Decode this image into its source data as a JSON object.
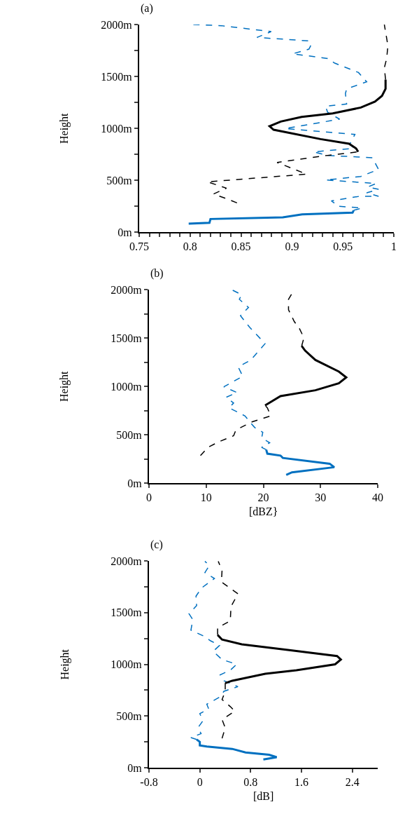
{
  "chart_data": [
    {
      "type": "line",
      "title": "(a)",
      "ylabel": "Height",
      "marker": "none",
      "xlim": [
        0.75,
        1
      ],
      "ylim": [
        0,
        2000
      ],
      "xticks": [
        0.75,
        {
          "value": 0.76,
          "label": null
        },
        {
          "value": 0.77,
          "label": null
        },
        {
          "value": 0.78,
          "label": null
        },
        {
          "value": 0.79,
          "label": null
        },
        0.8,
        {
          "value": 0.81,
          "label": null
        },
        {
          "value": 0.82,
          "label": null
        },
        {
          "value": 0.83,
          "label": null
        },
        {
          "value": 0.84,
          "label": null
        },
        0.85,
        {
          "value": 0.86,
          "label": null
        },
        {
          "value": 0.87,
          "label": null
        },
        {
          "value": 0.88,
          "label": null
        },
        {
          "value": 0.89,
          "label": null
        },
        0.9,
        {
          "value": 0.91,
          "label": null
        },
        {
          "value": 0.92,
          "label": null
        },
        {
          "value": 0.93,
          "label": null
        },
        {
          "value": 0.94,
          "label": null
        },
        0.95,
        {
          "value": 0.96,
          "label": null
        },
        {
          "value": 0.97,
          "label": null
        },
        {
          "value": 0.98,
          "label": null
        },
        {
          "value": 0.99,
          "label": null
        },
        1
      ],
      "yticks": [
        {
          "value": 0,
          "label": "0m"
        },
        {
          "value": 250,
          "label": null
        },
        {
          "value": 500,
          "label": "500m"
        },
        {
          "value": 750,
          "label": null
        },
        {
          "value": 1000,
          "label": "1000m"
        },
        {
          "value": 1250,
          "label": null
        },
        {
          "value": 1500,
          "label": "1500m"
        },
        {
          "value": 1750,
          "label": null
        },
        {
          "value": 2000,
          "label": "2000m"
        }
      ],
      "series": [
        {
          "color": "#0070c0",
          "line_style": "solid",
          "x": [
            0.7986,
            0.819,
            0.82,
            0.891,
            0.91,
            0.9595,
            0.9606
          ],
          "values": [
            81,
            90,
            126,
            142,
            171,
            187,
            209
          ]
        },
        {
          "color": "#0070c0",
          "line_style": "dashed",
          "x": [
            0.9606,
            0.9688,
            0.9444,
            0.942,
            0.9387,
            0.9664,
            0.985,
            0.9734,
            0.985,
            0.9745,
            0.9826,
            0.933,
            0.9676,
            0.985,
            0.979,
            0.935,
            0.9213,
            0.9606,
            0.957,
            0.9618,
            0.8935,
            0.9468,
            0.935,
            0.9329,
            0.9537,
            0.9525,
            0.9537,
            0.9734,
            0.9653,
            0.942,
            0.935,
            0.9005,
            0.9167,
            0.919,
            0.9167,
            0.8657,
            0.8796,
            0.831,
            0.8032
          ],
          "values": [
            209,
            232,
            250,
            277,
            300,
            345,
            345,
            378,
            412,
            435,
            468,
            502,
            536,
            604,
            716,
            739,
            773,
            806,
            851,
            941,
            998,
            1088,
            1155,
            1212,
            1234,
            1335,
            1380,
            1448,
            1538,
            1628,
            1673,
            1718,
            1763,
            1808,
            1842,
            1876,
            1932,
            1989,
            2000
          ]
        },
        {
          "color": "#000000",
          "line_style": "dashed",
          "x": [
            0.846,
            0.8357,
            0.823,
            0.8357,
            0.817,
            0.9144,
            0.8854,
            0.935,
            0.965
          ],
          "values": [
            281,
            322,
            367,
            423,
            484,
            558,
            671,
            739,
            773
          ]
        },
        {
          "color": "#000000",
          "line_style": "solid",
          "x": [
            0.965,
            0.963,
            0.956,
            0.928,
            0.882,
            0.878,
            0.889,
            0.9095,
            0.94,
            0.9676,
            0.9815,
            0.9884,
            0.9919,
            0.9919
          ],
          "values": [
            773,
            806,
            851,
            896,
            986,
            1020,
            1065,
            1110,
            1144,
            1200,
            1257,
            1313,
            1380,
            1470
          ]
        },
        {
          "color": "#000000",
          "line_style": "dashed",
          "x": [
            0.9919,
            0.9907,
            0.993,
            0.9942,
            0.9907
          ],
          "values": [
            1470,
            1583,
            1673,
            1797,
            2000
          ]
        }
      ]
    },
    {
      "type": "line",
      "title": "(b)",
      "xlabel": "[dBZ}",
      "ylabel": "Height",
      "marker": "none",
      "xlim": [
        0,
        40
      ],
      "ylim": [
        0,
        2000
      ],
      "xticks": [
        0,
        10,
        20,
        30,
        40
      ],
      "yticks": [
        {
          "value": 0,
          "label": "0m"
        },
        {
          "value": 250,
          "label": null
        },
        {
          "value": 500,
          "label": "500m"
        },
        {
          "value": 750,
          "label": null
        },
        {
          "value": 1000,
          "label": "1000m"
        },
        {
          "value": 1250,
          "label": null
        },
        {
          "value": 1500,
          "label": "1500m"
        },
        {
          "value": 1750,
          "label": null
        },
        {
          "value": 2000,
          "label": "2000m"
        }
      ],
      "series": [
        {
          "color": "#0070c0",
          "line_style": "solid",
          "x": [
            24.0,
            25.0,
            32.4,
            31.6,
            23.4,
            23.0,
            20.7,
            20.5
          ],
          "values": [
            84,
            111,
            164,
            200,
            260,
            284,
            304,
            345
          ]
        },
        {
          "color": "#0070c0",
          "line_style": "dashed",
          "x": [
            20.5,
            19.7,
            21.1,
            19.7,
            19.9,
            18.5,
            17.6,
            16.8,
            14.0,
            14.8,
            13.5,
            15.4,
            13.1,
            16.4,
            15.6,
            17.8,
            20.3,
            17.6,
            16.0,
            17.4,
            15.8,
            16.2,
            14.4
          ],
          "values": [
            345,
            369,
            417,
            465,
            525,
            574,
            634,
            694,
            778,
            827,
            887,
            935,
            995,
            1104,
            1200,
            1272,
            1441,
            1610,
            1730,
            1815,
            1899,
            1947,
            2000
          ]
        },
        {
          "color": "#000000",
          "line_style": "dashed",
          "x": [
            9.0,
            10.3,
            12.3,
            14.8,
            15.2,
            18.1,
            21.3,
            20.7,
            20.3
          ],
          "values": [
            284,
            369,
            429,
            489,
            549,
            634,
            694,
            778,
            803
          ]
        },
        {
          "color": "#000000",
          "line_style": "solid",
          "x": [
            20.3,
            23.0,
            29.1,
            33.2,
            34.5,
            33.2,
            29.1,
            27.3,
            26.7
          ],
          "values": [
            803,
            899,
            959,
            1031,
            1092,
            1152,
            1272,
            1369,
            1417
          ]
        },
        {
          "color": "#000000",
          "line_style": "dashed",
          "x": [
            26.7,
            27.1,
            26.3,
            25.4,
            24.4,
            24.4,
            25.0,
            24.6
          ],
          "values": [
            1417,
            1501,
            1598,
            1670,
            1791,
            1899,
            1959,
            2000
          ]
        }
      ]
    },
    {
      "type": "line",
      "title": "(c)",
      "xlabel": "[dB]",
      "ylabel": "Height",
      "marker": "none",
      "xlim": [
        -0.8,
        2.8
      ],
      "ylim": [
        0,
        2000
      ],
      "xticks": [
        -0.8,
        0,
        0.8,
        1.6,
        2.4
      ],
      "yticks": [
        {
          "value": 0,
          "label": "0m"
        },
        {
          "value": 250,
          "label": null
        },
        {
          "value": 500,
          "label": "500m"
        },
        {
          "value": 750,
          "label": null
        },
        {
          "value": 1000,
          "label": "1000m"
        },
        {
          "value": 1250,
          "label": null
        },
        {
          "value": 1500,
          "label": "1500m"
        },
        {
          "value": 1750,
          "label": null
        },
        {
          "value": 2000,
          "label": "2000m"
        }
      ],
      "series": [
        {
          "color": "#0070c0",
          "line_style": "solid",
          "x": [
            1.0,
            1.21,
            1.09,
            0.72,
            0.51,
            0.11,
            0,
            0,
            -0.05
          ],
          "values": [
            80,
            102,
            125,
            148,
            182,
            205,
            216,
            250,
            273
          ]
        },
        {
          "color": "#0070c0",
          "line_style": "dashed",
          "x": [
            -0.05,
            -0.14,
            0.02,
            -0.03,
            0.05,
            0,
            0.14,
            0.11,
            0.31,
            0.38,
            0.6,
            0.38,
            0.32,
            0.48,
            0.58,
            0.35,
            0.21,
            0.31,
            0.17,
            0.06,
            -0.14,
            -0.11,
            -0.17,
            -0.05,
            -0.06,
            0.03,
            0.23,
            0.08,
            0.15,
            0.08
          ],
          "values": [
            273,
            291,
            330,
            386,
            455,
            523,
            568,
            614,
            682,
            739,
            784,
            841,
            898,
            943,
            1000,
            1046,
            1125,
            1182,
            1227,
            1273,
            1330,
            1432,
            1489,
            1568,
            1659,
            1739,
            1830,
            1887,
            1955,
            1996
          ]
        },
        {
          "color": "#000000",
          "line_style": "dashed",
          "x": [
            0.35,
            0.4,
            0.35,
            0.55,
            0.48,
            0.35,
            0.4,
            0.4
          ],
          "values": [
            284,
            386,
            466,
            546,
            591,
            659,
            739,
            818
          ]
        },
        {
          "color": "#000000",
          "line_style": "solid",
          "x": [
            0.4,
            0.51,
            1.03,
            1.52,
            2.13,
            2.22,
            2.16,
            1.43,
            0.66,
            0.35,
            0.28
          ],
          "values": [
            818,
            841,
            909,
            943,
            1000,
            1046,
            1080,
            1136,
            1193,
            1239,
            1284
          ]
        },
        {
          "color": "#000000",
          "line_style": "dashed",
          "x": [
            0.28,
            0.28,
            0.48,
            0.49,
            0.6,
            0.34,
            0.35,
            0.29
          ],
          "values": [
            1284,
            1352,
            1421,
            1557,
            1682,
            1796,
            1909,
            1996
          ]
        }
      ]
    }
  ]
}
